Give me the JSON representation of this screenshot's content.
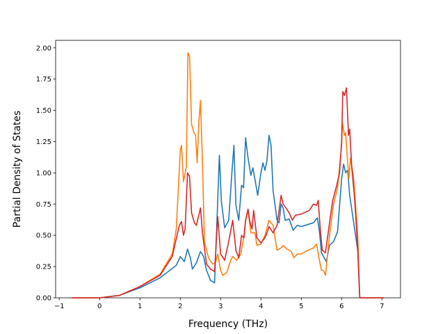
{
  "chart_data": {
    "type": "line",
    "xlabel": "Frequency (THz)",
    "ylabel": "Partial Density of States",
    "xlim": [
      -1.09,
      7.46
    ],
    "ylim": [
      0.0,
      2.06
    ],
    "xticks": [
      "−1",
      "0",
      "1",
      "2",
      "3",
      "4",
      "5",
      "6",
      "7"
    ],
    "xtick_values": [
      -1,
      0,
      1,
      2,
      3,
      4,
      5,
      6,
      7
    ],
    "yticks": [
      "0.00",
      "0.25",
      "0.50",
      "0.75",
      "1.00",
      "1.25",
      "1.50",
      "1.75",
      "2.00"
    ],
    "ytick_values": [
      0,
      0.25,
      0.5,
      0.75,
      1.0,
      1.25,
      1.5,
      1.75,
      2.0
    ],
    "grid": false,
    "legend": "none",
    "series": [
      {
        "color": "#1f77b4",
        "points": [
          [
            -0.7,
            0
          ],
          [
            0,
            0
          ],
          [
            0.5,
            0.02
          ],
          [
            1,
            0.08
          ],
          [
            1.5,
            0.16
          ],
          [
            1.9,
            0.26
          ],
          [
            2.0,
            0.33
          ],
          [
            2.1,
            0.29
          ],
          [
            2.18,
            0.39
          ],
          [
            2.25,
            0.32
          ],
          [
            2.3,
            0.23
          ],
          [
            2.4,
            0.28
          ],
          [
            2.5,
            0.37
          ],
          [
            2.58,
            0.33
          ],
          [
            2.65,
            0.22
          ],
          [
            2.75,
            0.14
          ],
          [
            2.85,
            0.12
          ],
          [
            2.92,
            0.7
          ],
          [
            2.97,
            1.14
          ],
          [
            3.02,
            0.77
          ],
          [
            3.1,
            0.56
          ],
          [
            3.2,
            0.62
          ],
          [
            3.28,
            1.0
          ],
          [
            3.33,
            1.22
          ],
          [
            3.38,
            0.74
          ],
          [
            3.45,
            0.62
          ],
          [
            3.52,
            0.9
          ],
          [
            3.57,
            0.88
          ],
          [
            3.62,
            1.28
          ],
          [
            3.68,
            1.12
          ],
          [
            3.75,
            0.98
          ],
          [
            3.8,
            1.04
          ],
          [
            3.85,
            0.95
          ],
          [
            3.92,
            0.82
          ],
          [
            4.0,
            1.0
          ],
          [
            4.05,
            1.08
          ],
          [
            4.1,
            1.02
          ],
          [
            4.15,
            1.1
          ],
          [
            4.2,
            1.3
          ],
          [
            4.25,
            1.22
          ],
          [
            4.3,
            0.86
          ],
          [
            4.4,
            0.62
          ],
          [
            4.45,
            0.6
          ],
          [
            4.5,
            0.75
          ],
          [
            4.55,
            0.72
          ],
          [
            4.6,
            0.62
          ],
          [
            4.7,
            0.63
          ],
          [
            4.8,
            0.54
          ],
          [
            4.9,
            0.58
          ],
          [
            5.0,
            0.57
          ],
          [
            5.1,
            0.58
          ],
          [
            5.3,
            0.6
          ],
          [
            5.4,
            0.64
          ],
          [
            5.45,
            0.53
          ],
          [
            5.5,
            0.36
          ],
          [
            5.55,
            0.33
          ],
          [
            5.62,
            0.29
          ],
          [
            5.7,
            0.42
          ],
          [
            5.8,
            0.45
          ],
          [
            5.9,
            0.53
          ],
          [
            6.0,
            0.95
          ],
          [
            6.05,
            1.07
          ],
          [
            6.1,
            1.0
          ],
          [
            6.15,
            1.02
          ],
          [
            6.2,
            0.82
          ],
          [
            6.3,
            0.6
          ],
          [
            6.4,
            0.38
          ],
          [
            6.45,
            0.0
          ],
          [
            7.05,
            0
          ]
        ]
      },
      {
        "color": "#ff7f0e",
        "points": [
          [
            -0.7,
            0
          ],
          [
            0,
            0
          ],
          [
            0.5,
            0.02
          ],
          [
            1,
            0.09
          ],
          [
            1.5,
            0.19
          ],
          [
            1.8,
            0.35
          ],
          [
            1.9,
            0.55
          ],
          [
            1.95,
            0.86
          ],
          [
            2.0,
            1.18
          ],
          [
            2.03,
            1.22
          ],
          [
            2.08,
            0.93
          ],
          [
            2.15,
            1.05
          ],
          [
            2.19,
            1.96
          ],
          [
            2.23,
            1.93
          ],
          [
            2.28,
            1.39
          ],
          [
            2.33,
            1.33
          ],
          [
            2.38,
            1.3
          ],
          [
            2.42,
            1.08
          ],
          [
            2.46,
            1.4
          ],
          [
            2.5,
            1.58
          ],
          [
            2.55,
            1.08
          ],
          [
            2.6,
            0.45
          ],
          [
            2.7,
            0.32
          ],
          [
            2.8,
            0.27
          ],
          [
            2.87,
            0.28
          ],
          [
            2.93,
            0.35
          ],
          [
            3.0,
            0.22
          ],
          [
            3.05,
            0.18
          ],
          [
            3.15,
            0.2
          ],
          [
            3.25,
            0.3
          ],
          [
            3.3,
            0.33
          ],
          [
            3.4,
            0.3
          ],
          [
            3.5,
            0.35
          ],
          [
            3.58,
            0.5
          ],
          [
            3.62,
            0.62
          ],
          [
            3.68,
            0.7
          ],
          [
            3.75,
            0.52
          ],
          [
            3.85,
            0.52
          ],
          [
            3.9,
            0.42
          ],
          [
            4.0,
            0.43
          ],
          [
            4.1,
            0.5
          ],
          [
            4.2,
            0.62
          ],
          [
            4.3,
            0.58
          ],
          [
            4.4,
            0.38
          ],
          [
            4.5,
            0.4
          ],
          [
            4.55,
            0.42
          ],
          [
            4.65,
            0.39
          ],
          [
            4.75,
            0.37
          ],
          [
            4.82,
            0.32
          ],
          [
            4.9,
            0.35
          ],
          [
            5.0,
            0.35
          ],
          [
            5.1,
            0.37
          ],
          [
            5.3,
            0.4
          ],
          [
            5.38,
            0.43
          ],
          [
            5.45,
            0.3
          ],
          [
            5.5,
            0.22
          ],
          [
            5.55,
            0.22
          ],
          [
            5.6,
            0.18
          ],
          [
            5.7,
            0.5
          ],
          [
            5.8,
            0.75
          ],
          [
            5.9,
            0.88
          ],
          [
            6.0,
            1.22
          ],
          [
            6.02,
            1.4
          ],
          [
            6.07,
            1.3
          ],
          [
            6.1,
            1.32
          ],
          [
            6.18,
            0.95
          ],
          [
            6.22,
            1.12
          ],
          [
            6.3,
            0.95
          ],
          [
            6.4,
            0.5
          ],
          [
            6.45,
            0.0
          ],
          [
            7.05,
            0
          ]
        ]
      },
      {
        "color": "#d62728",
        "points": [
          [
            -0.7,
            0
          ],
          [
            0,
            0
          ],
          [
            0.5,
            0.02
          ],
          [
            1,
            0.09
          ],
          [
            1.5,
            0.18
          ],
          [
            1.8,
            0.33
          ],
          [
            1.92,
            0.5
          ],
          [
            1.98,
            0.58
          ],
          [
            2.03,
            0.61
          ],
          [
            2.08,
            0.5
          ],
          [
            2.12,
            0.55
          ],
          [
            2.18,
            1.0
          ],
          [
            2.23,
            0.97
          ],
          [
            2.28,
            0.68
          ],
          [
            2.35,
            0.6
          ],
          [
            2.4,
            0.58
          ],
          [
            2.45,
            0.65
          ],
          [
            2.5,
            0.72
          ],
          [
            2.55,
            0.52
          ],
          [
            2.65,
            0.27
          ],
          [
            2.75,
            0.23
          ],
          [
            2.85,
            0.21
          ],
          [
            2.93,
            0.65
          ],
          [
            3.0,
            0.35
          ],
          [
            3.1,
            0.3
          ],
          [
            3.2,
            0.45
          ],
          [
            3.3,
            0.62
          ],
          [
            3.38,
            0.38
          ],
          [
            3.45,
            0.32
          ],
          [
            3.52,
            0.5
          ],
          [
            3.58,
            0.48
          ],
          [
            3.62,
            0.62
          ],
          [
            3.68,
            0.71
          ],
          [
            3.72,
            0.62
          ],
          [
            3.78,
            0.55
          ],
          [
            3.82,
            0.7
          ],
          [
            3.9,
            0.48
          ],
          [
            4.0,
            0.44
          ],
          [
            4.1,
            0.48
          ],
          [
            4.15,
            0.52
          ],
          [
            4.2,
            0.57
          ],
          [
            4.3,
            0.52
          ],
          [
            4.4,
            0.58
          ],
          [
            4.5,
            0.82
          ],
          [
            4.55,
            0.75
          ],
          [
            4.62,
            0.72
          ],
          [
            4.7,
            0.68
          ],
          [
            4.78,
            0.62
          ],
          [
            4.85,
            0.66
          ],
          [
            5.0,
            0.67
          ],
          [
            5.2,
            0.7
          ],
          [
            5.3,
            0.75
          ],
          [
            5.38,
            0.74
          ],
          [
            5.42,
            0.78
          ],
          [
            5.47,
            0.55
          ],
          [
            5.52,
            0.38
          ],
          [
            5.6,
            0.36
          ],
          [
            5.68,
            0.55
          ],
          [
            5.78,
            0.78
          ],
          [
            5.88,
            0.9
          ],
          [
            5.95,
            1.0
          ],
          [
            6.0,
            1.25
          ],
          [
            6.03,
            1.65
          ],
          [
            6.07,
            1.62
          ],
          [
            6.12,
            1.68
          ],
          [
            6.17,
            1.3
          ],
          [
            6.2,
            1.35
          ],
          [
            6.25,
            1.05
          ],
          [
            6.32,
            0.8
          ],
          [
            6.4,
            0.4
          ],
          [
            6.45,
            0.0
          ],
          [
            7.05,
            0
          ]
        ]
      }
    ]
  }
}
